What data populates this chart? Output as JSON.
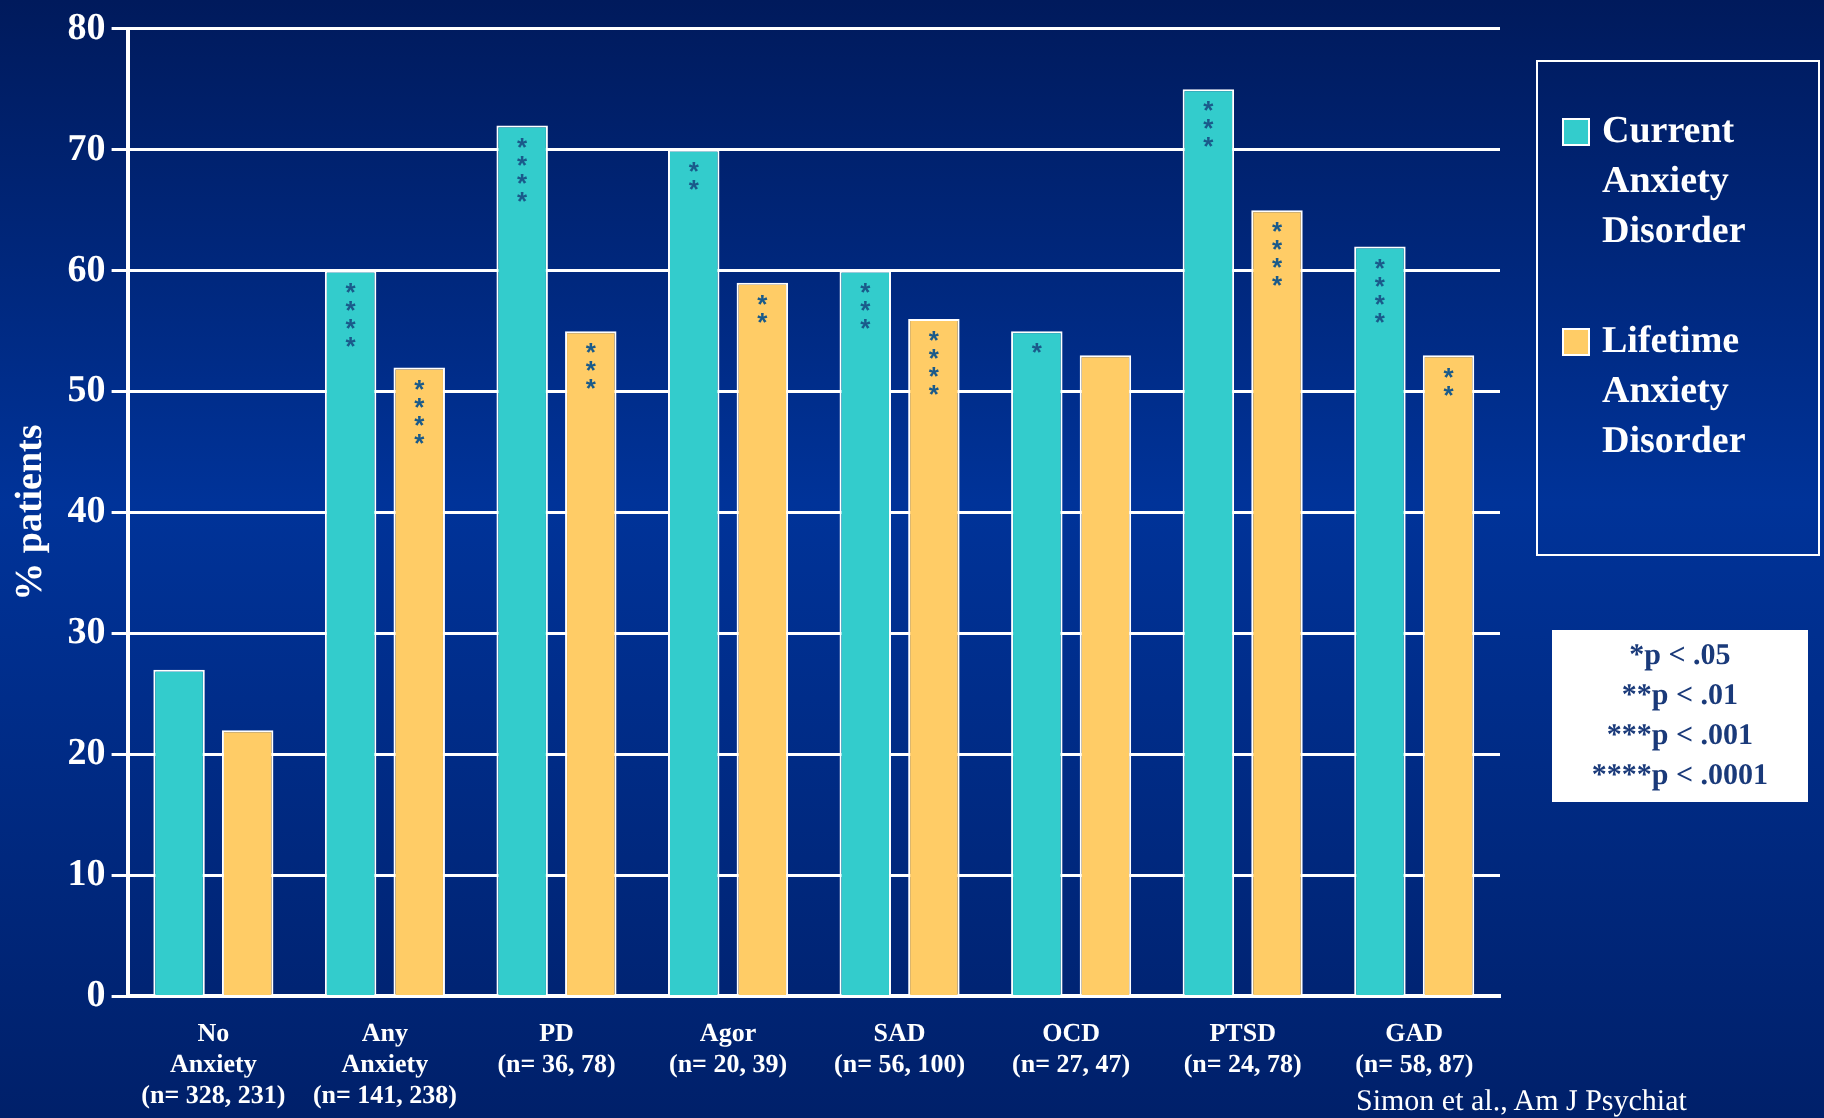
{
  "chart_data": {
    "type": "bar",
    "ylabel": "% patients",
    "categories": [
      "No\nAnxiety\n(n= 328, 231)",
      "Any\nAnxiety\n(n= 141, 238)",
      "PD\n(n= 36, 78)",
      "Agor\n(n= 20, 39)",
      "SAD\n(n= 56, 100)",
      "OCD\n(n= 27, 47)",
      "PTSD\n(n= 24, 78)",
      "GAD\n(n= 58, 87)"
    ],
    "series": [
      {
        "name": "Current Anxiety Disorder",
        "color": "#33cccc",
        "values": [
          27,
          60,
          72,
          70,
          60,
          55,
          75,
          62
        ],
        "value_labels": [
          null,
          "****",
          "****",
          "**",
          "***",
          "*",
          "***",
          "****"
        ]
      },
      {
        "name": "Lifetime Anxiety Disorder",
        "color": "#ffcc66",
        "values": [
          22,
          52,
          55,
          59,
          56,
          53,
          65,
          53
        ],
        "value_labels": [
          null,
          "****",
          "***",
          "**",
          "****",
          null,
          "****",
          "**"
        ]
      }
    ],
    "ylim": [
      0,
      80
    ],
    "yticks": [
      0,
      10,
      20,
      30,
      40,
      50,
      60,
      70,
      80
    ],
    "grid": "y",
    "legend": "right",
    "annotations": [
      "*p < .05",
      "**p < .01",
      "***p < .001",
      "****p < .0001",
      "Simon et al., Am J Psychiat"
    ]
  }
}
